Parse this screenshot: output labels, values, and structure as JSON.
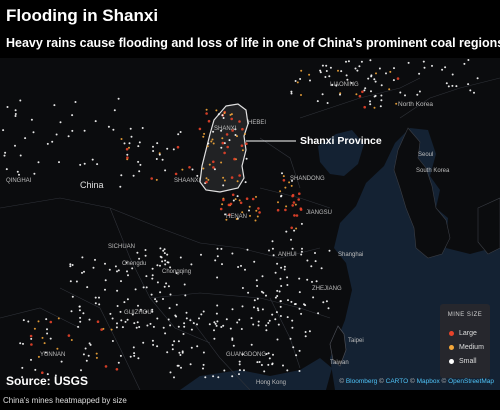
{
  "title": "Flooding in Shanxi",
  "subtitle": "Heavy rains cause flooding and loss of life in one of China's prominent coal regions",
  "callout": "Shanxi Province",
  "map_labels": [
    {
      "id": "china",
      "text": "China"
    },
    {
      "id": "qinghai",
      "text": "QINGHAI"
    },
    {
      "id": "shanxi",
      "text": "SHANXI"
    },
    {
      "id": "hebei",
      "text": "HEBEI"
    },
    {
      "id": "liaoning",
      "text": "LIAONING"
    },
    {
      "id": "north-korea",
      "text": "North Korea"
    },
    {
      "id": "seoul",
      "text": "Seoul"
    },
    {
      "id": "south-korea",
      "text": "South Korea"
    },
    {
      "id": "shandong",
      "text": "SHANDONG"
    },
    {
      "id": "shaanxi",
      "text": "SHAANXI"
    },
    {
      "id": "henan",
      "text": "HENAN"
    },
    {
      "id": "jiangsu",
      "text": "JIANGSU"
    },
    {
      "id": "sichuan",
      "text": "SICHUAN"
    },
    {
      "id": "chengdu",
      "text": "Chengdu"
    },
    {
      "id": "anhui",
      "text": "ANHUI"
    },
    {
      "id": "shanghai",
      "text": "Shanghai"
    },
    {
      "id": "chongqing",
      "text": "Chongqing"
    },
    {
      "id": "zhejiang",
      "text": "ZHEJIANG"
    },
    {
      "id": "guizhou",
      "text": "GUIZHOU"
    },
    {
      "id": "yunnan",
      "text": "YUNNAN"
    },
    {
      "id": "guangdong",
      "text": "GUANGDONG"
    },
    {
      "id": "taipei",
      "text": "Taipei"
    },
    {
      "id": "taiwan",
      "text": "Taiwan"
    },
    {
      "id": "hong-kong",
      "text": "Hong Kong"
    }
  ],
  "legend": {
    "title": "MINE SIZE",
    "items": [
      {
        "label": "Large",
        "color": "#e8432a"
      },
      {
        "label": "Medium",
        "color": "#f4a73a"
      },
      {
        "label": "Small",
        "color": "#ffffff"
      }
    ]
  },
  "source": "Source: USGS",
  "attribution": {
    "bloomberg": "Bloomberg",
    "carto": "CARTO",
    "mapbox": "Mapbox",
    "osm": "OpenStreetMap"
  },
  "caption": "China's mines heatmapped by size",
  "colors": {
    "sea": "#142233",
    "land": "#0b0c0e",
    "border": "#3a3d44",
    "highlight": "#d9d9d9"
  }
}
